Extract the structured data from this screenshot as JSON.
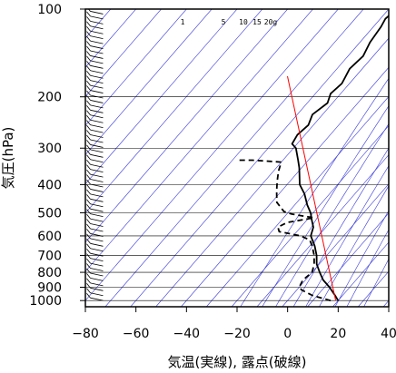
{
  "chart_data": {
    "type": "line",
    "title": "",
    "xlabel": "気温(実線), 露点(破線)",
    "ylabel": "気圧(hPa)",
    "xlim": [
      -80,
      40
    ],
    "ylim": [
      1050,
      100
    ],
    "y_scale": "log",
    "x_ticks": [
      -80,
      -60,
      -40,
      -20,
      0,
      20,
      40
    ],
    "x_tick_labels": [
      "−80",
      "−60",
      "−40",
      "−20",
      "0",
      "20",
      "40"
    ],
    "y_ticks": [
      100,
      200,
      300,
      400,
      500,
      600,
      700,
      800,
      900,
      1000
    ],
    "y_tick_labels": [
      "100",
      "200",
      "300",
      "400",
      "500",
      "600",
      "700",
      "800",
      "900",
      "1000"
    ],
    "grid": true,
    "skew_per_decade": 100,
    "mixing_ratio_labels": [
      "1",
      "5",
      "10",
      "15",
      "20g"
    ],
    "series": [
      {
        "name": "temperature",
        "style": "solid",
        "color": "#000000",
        "points": [
          [
            20,
            1000
          ],
          [
            17,
            960
          ],
          [
            12,
            900
          ],
          [
            7,
            850
          ],
          [
            3,
            800
          ],
          [
            -1,
            750
          ],
          [
            -4,
            700
          ],
          [
            -8,
            650
          ],
          [
            -13,
            600
          ],
          [
            -15,
            560
          ],
          [
            -18,
            530
          ],
          [
            -21,
            500
          ],
          [
            -25,
            470
          ],
          [
            -30,
            430
          ],
          [
            -35,
            400
          ],
          [
            -41,
            350
          ],
          [
            -44,
            330
          ],
          [
            -49,
            300
          ],
          [
            -52,
            290
          ],
          [
            -53,
            270
          ],
          [
            -52,
            250
          ],
          [
            -54,
            230
          ],
          [
            -52,
            210
          ],
          [
            -54,
            195
          ],
          [
            -53,
            180
          ],
          [
            -55,
            160
          ],
          [
            -54,
            145
          ],
          [
            -56,
            130
          ],
          [
            -57,
            115
          ],
          [
            -58,
            108
          ],
          [
            -57,
            100
          ]
        ]
      },
      {
        "name": "dewpoint",
        "style": "dashed",
        "color": "#000000",
        "points": [
          [
            17,
            1000
          ],
          [
            8,
            960
          ],
          [
            2,
            920
          ],
          [
            0,
            900
          ],
          [
            -1,
            850
          ],
          [
            0,
            800
          ],
          [
            -2,
            750
          ],
          [
            -5,
            700
          ],
          [
            -9,
            650
          ],
          [
            -12,
            620
          ],
          [
            -17,
            600
          ],
          [
            -27,
            580
          ],
          [
            -29,
            560
          ],
          [
            -27,
            540
          ],
          [
            -18,
            520
          ],
          [
            -28,
            505
          ],
          [
            -32,
            495
          ],
          [
            -38,
            460
          ],
          [
            -42,
            420
          ],
          [
            -45,
            390
          ],
          [
            -48,
            360
          ],
          [
            -50,
            335
          ],
          [
            -62,
            330
          ],
          [
            -68,
            330
          ]
        ]
      },
      {
        "name": "reference",
        "style": "solid",
        "color": "#ff0000",
        "points": [
          [
            19,
            1000
          ],
          [
            -77,
            170
          ]
        ]
      }
    ],
    "wind_barbs": {
      "x_position": -73,
      "count": 60,
      "pressure_range": [
        1000,
        100
      ]
    }
  }
}
